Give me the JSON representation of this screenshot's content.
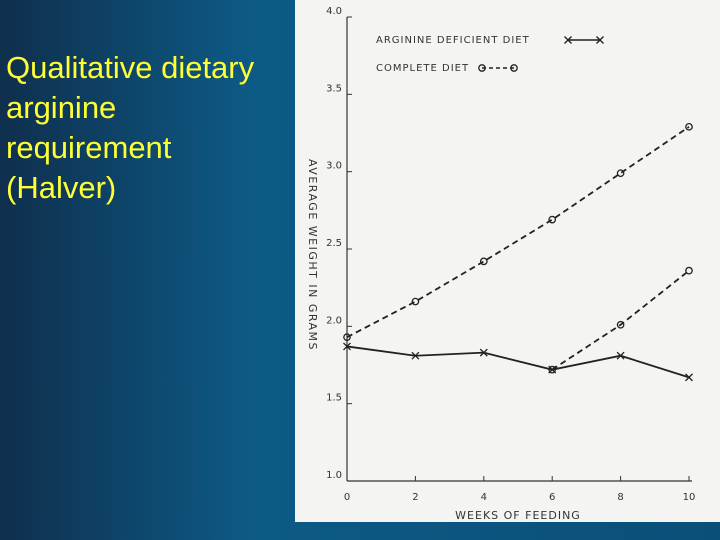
{
  "chart_data": {
    "type": "line",
    "title": "Qualitative dietary arginine requirement (Halver)",
    "x_label": "WEEKS OF FEEDING",
    "y_label": "AVERAGE WEIGHT IN GRAMS",
    "x": [
      0,
      2,
      4,
      6,
      8,
      10
    ],
    "series": [
      {
        "name": "ARGININE DEFICIENT DIET",
        "color": "#222222",
        "line_style": "solid",
        "marker": "x",
        "values": [
          1.87,
          1.81,
          1.83,
          1.72,
          1.81,
          1.67
        ]
      },
      {
        "name": "COMPLETE DIET",
        "color": "#222222",
        "line_style": "dashed",
        "marker": "o",
        "values": [
          1.93,
          2.16,
          2.42,
          2.69,
          2.99,
          3.29
        ]
      },
      {
        "color": "#222222",
        "line_style": "dashed",
        "marker": "o",
        "values": [
          null,
          null,
          null,
          1.72,
          2.01,
          2.36
        ]
      }
    ],
    "xlim": [
      0,
      10
    ],
    "xticks": [
      0,
      2,
      4,
      6,
      8,
      10
    ],
    "ylim": [
      1,
      4
    ],
    "yticks": [
      {
        "value": 1,
        "label": "1.0"
      },
      {
        "value": 1.5,
        "label": "1.5"
      },
      {
        "value": 2,
        "label": "2.0"
      },
      {
        "value": 2.5,
        "label": "2.5"
      },
      {
        "value": 3,
        "label": "3.0"
      },
      {
        "value": 3.5,
        "label": "3.5"
      },
      {
        "value": 4,
        "label": "4.0"
      }
    ],
    "grid": false
  }
}
